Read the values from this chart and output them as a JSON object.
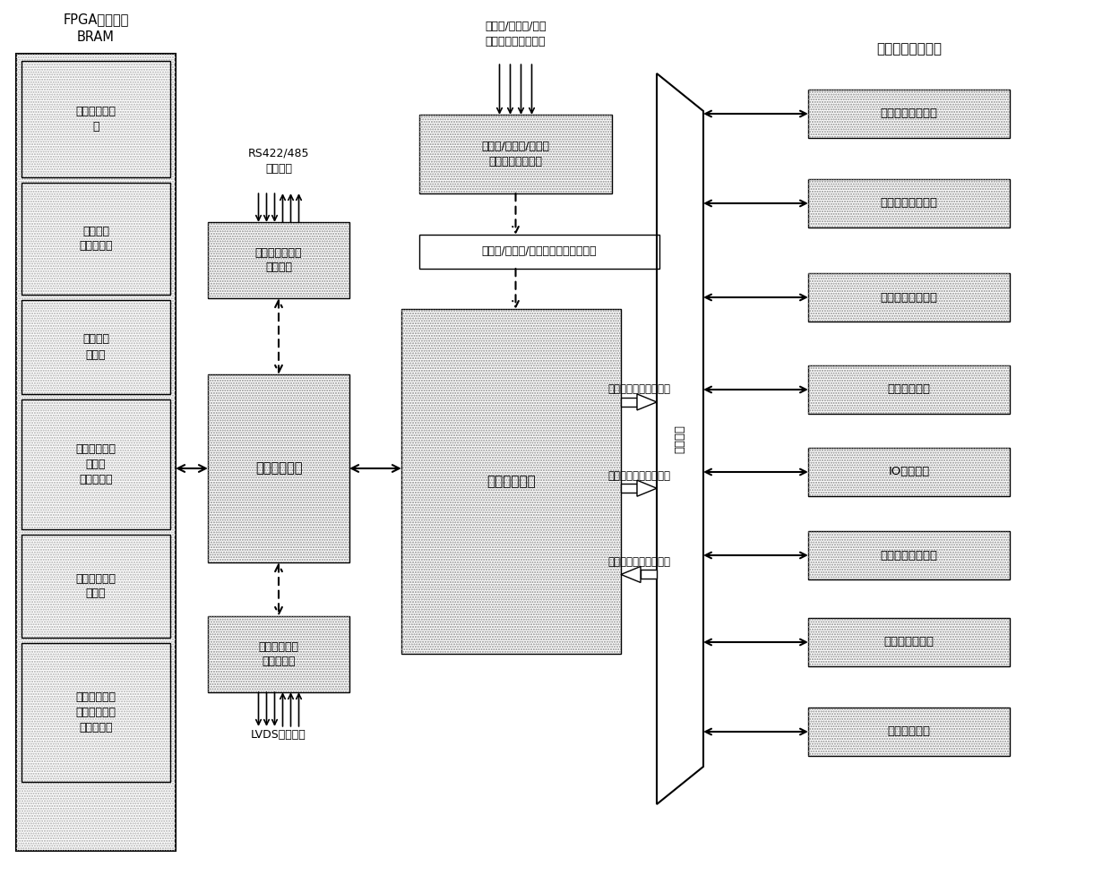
{
  "fig_width": 12.4,
  "fig_height": 9.77,
  "bg_color": "#ffffff",
  "bram_label": "FPGA芯片内部\nBRAM",
  "bram_regions": [
    "功能数据地址\n区",
    "配置参数\n数据地址区",
    "显示数据\n地址区",
    "人机界面软操\n作命令\n数据地址区",
    "功能信号数据\n地址区",
    "基本应用功能\n模块中间运算\n结果地址区"
  ],
  "module_serial_label": "机笱外串行通信\n控制模块",
  "module_memory_label": "内存控制模块",
  "module_backplane_label": "机笱内背板通\n信控制模块",
  "module_main_logic_label": "主控逻辑模块",
  "module_io_ctrl_label": "模拟量/数字量/脉冲量\n输入输出控制模块",
  "module_io_reg_label": "模拟量/数字量/脉冲量输入输出寄存器",
  "mux_label": "复选模块",
  "rs422_label": "RS422/485\n硬件接口",
  "lvds_label": "LVDS硬件接口",
  "io_hw_label": "模拟量/数字量/脉冲\n量输入输出硬件接口",
  "input_data_label": "基本功能模块输入数据",
  "config_param_label": "基本功能模块配置参数",
  "output_data_label": "基本功能模块输出数据",
  "basic_app_label": "基本应用功能模块",
  "app_modules": [
    "基本逻辑运算单元",
    "基本数学运算单元",
    "复杂数学运算单元",
    "传递函数单元",
    "IO处理单元",
    "背板通信处理单元",
    "软操作处理单元",
    "延时操作单元"
  ]
}
